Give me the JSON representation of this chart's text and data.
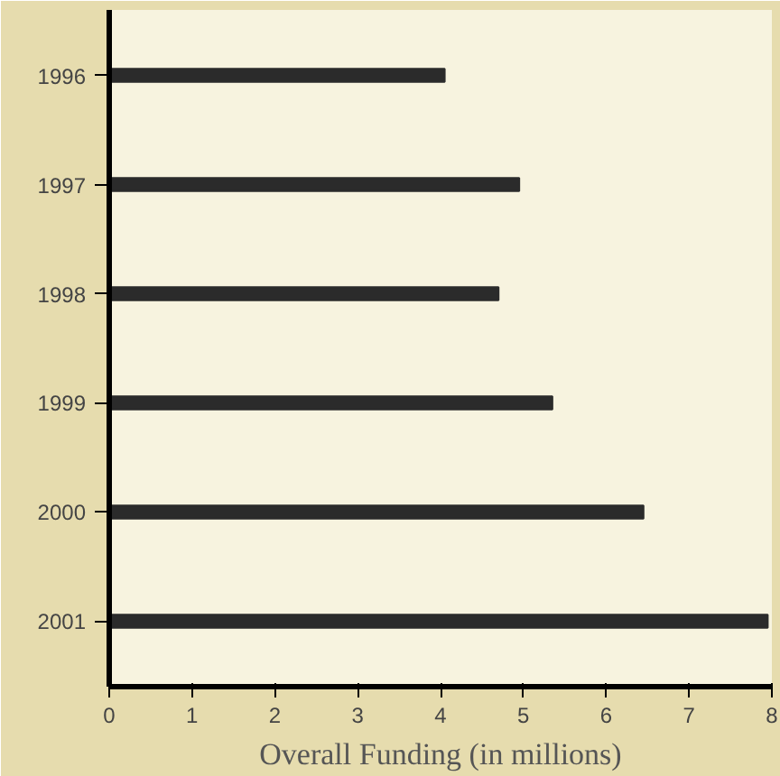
{
  "chart_data": {
    "type": "bar",
    "orientation": "horizontal",
    "xlabel": "Overall Funding (in millions)",
    "categories": [
      "1996",
      "1997",
      "1998",
      "1999",
      "2000",
      "2001"
    ],
    "values": [
      4.05,
      4.95,
      4.7,
      5.35,
      6.45,
      7.95
    ],
    "color": "#2b2b2b",
    "xlim": [
      0,
      8
    ],
    "xticks": [
      0,
      1,
      2,
      3,
      4,
      5,
      6,
      7,
      8
    ],
    "grid": false
  }
}
